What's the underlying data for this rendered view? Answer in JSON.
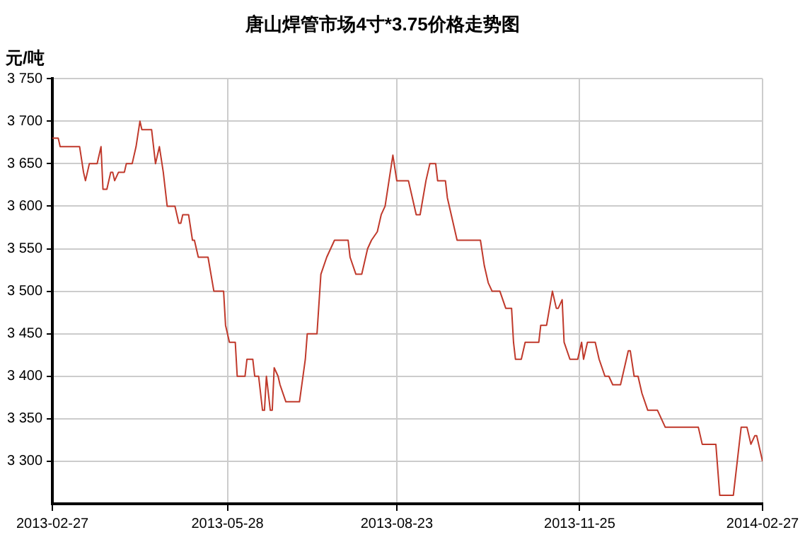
{
  "chart_data": {
    "type": "line",
    "title": "唐山焊管市场4寸*3.75价格走势图",
    "ylabel": "元/吨",
    "x": [
      "2013-02-27",
      "2013-03-02",
      "2013-03-03",
      "2013-03-13",
      "2013-03-15",
      "2013-03-16",
      "2013-03-18",
      "2013-03-22",
      "2013-03-24",
      "2013-03-25",
      "2013-03-27",
      "2013-03-29",
      "2013-03-30",
      "2013-03-31",
      "2013-04-02",
      "2013-04-05",
      "2013-04-06",
      "2013-04-09",
      "2013-04-11",
      "2013-04-13",
      "2013-04-14",
      "2013-04-19",
      "2013-04-21",
      "2013-04-23",
      "2013-04-25",
      "2013-04-27",
      "2013-05-01",
      "2013-05-03",
      "2013-05-04",
      "2013-05-05",
      "2013-05-08",
      "2013-05-10",
      "2013-05-11",
      "2013-05-13",
      "2013-05-18",
      "2013-05-21",
      "2013-05-26",
      "2013-05-27",
      "2013-05-29",
      "2013-06-01",
      "2013-06-02",
      "2013-06-06",
      "2013-06-07",
      "2013-06-10",
      "2013-06-11",
      "2013-06-13",
      "2013-06-15",
      "2013-06-16",
      "2013-06-17",
      "2013-06-19",
      "2013-06-20",
      "2013-06-21",
      "2013-06-23",
      "2013-06-24",
      "2013-06-27",
      "2013-07-04",
      "2013-07-07",
      "2013-07-08",
      "2013-07-13",
      "2013-07-15",
      "2013-07-18",
      "2013-07-20",
      "2013-07-22",
      "2013-07-29",
      "2013-07-30",
      "2013-08-02",
      "2013-08-05",
      "2013-08-08",
      "2013-08-10",
      "2013-08-13",
      "2013-08-15",
      "2013-08-17",
      "2013-08-19",
      "2013-08-21",
      "2013-08-23",
      "2013-08-29",
      "2013-08-31",
      "2013-09-02",
      "2013-09-04",
      "2013-09-07",
      "2013-09-09",
      "2013-09-12",
      "2013-09-13",
      "2013-09-17",
      "2013-09-18",
      "2013-09-20",
      "2013-09-23",
      "2013-10-05",
      "2013-10-07",
      "2013-10-09",
      "2013-10-11",
      "2013-10-15",
      "2013-10-18",
      "2013-10-21",
      "2013-10-22",
      "2013-10-23",
      "2013-10-26",
      "2013-10-28",
      "2013-11-04",
      "2013-11-05",
      "2013-11-08",
      "2013-11-11",
      "2013-11-13",
      "2013-11-14",
      "2013-11-16",
      "2013-11-17",
      "2013-11-20",
      "2013-11-24",
      "2013-11-26",
      "2013-11-27",
      "2013-11-29",
      "2013-12-03",
      "2013-12-05",
      "2013-12-08",
      "2013-12-10",
      "2013-12-12",
      "2013-12-16",
      "2013-12-20",
      "2013-12-21",
      "2013-12-23",
      "2013-12-25",
      "2013-12-27",
      "2013-12-30",
      "2014-01-04",
      "2014-01-08",
      "2014-01-25",
      "2014-01-27",
      "2014-02-03",
      "2014-02-05",
      "2014-02-12",
      "2014-02-16",
      "2014-02-19",
      "2014-02-21",
      "2014-02-23",
      "2014-02-24",
      "2014-02-27"
    ],
    "series": [
      {
        "color": "#c0392b",
        "values": [
          3680,
          3680,
          3670,
          3670,
          3640,
          3630,
          3650,
          3650,
          3670,
          3620,
          3620,
          3640,
          3640,
          3630,
          3640,
          3640,
          3650,
          3650,
          3670,
          3700,
          3690,
          3690,
          3650,
          3670,
          3640,
          3600,
          3600,
          3580,
          3580,
          3590,
          3590,
          3560,
          3560,
          3540,
          3540,
          3500,
          3500,
          3460,
          3440,
          3440,
          3400,
          3400,
          3420,
          3420,
          3400,
          3400,
          3360,
          3360,
          3400,
          3360,
          3360,
          3410,
          3400,
          3390,
          3370,
          3370,
          3420,
          3450,
          3450,
          3520,
          3540,
          3550,
          3560,
          3560,
          3540,
          3520,
          3520,
          3550,
          3560,
          3570,
          3590,
          3600,
          3630,
          3660,
          3630,
          3630,
          3610,
          3590,
          3590,
          3630,
          3650,
          3650,
          3630,
          3630,
          3610,
          3590,
          3560,
          3560,
          3530,
          3510,
          3500,
          3500,
          3480,
          3480,
          3440,
          3420,
          3420,
          3440,
          3440,
          3460,
          3460,
          3500,
          3480,
          3480,
          3490,
          3440,
          3420,
          3420,
          3440,
          3420,
          3440,
          3440,
          3420,
          3400,
          3400,
          3390,
          3390,
          3430,
          3430,
          3400,
          3400,
          3380,
          3360,
          3360,
          3340,
          3340,
          3320,
          3320,
          3260,
          3260,
          3340,
          3340,
          3320,
          3330,
          3330,
          3300
        ]
      }
    ],
    "xlim": [
      "2013-02-27",
      "2014-02-27"
    ],
    "xticks": [
      "2013-02-27",
      "2013-05-28",
      "2013-08-23",
      "2013-11-25",
      "2014-02-27"
    ],
    "ylim": [
      3250,
      3750
    ],
    "yticks": [
      {
        "value": 3300,
        "label": "3 300"
      },
      {
        "value": 3350,
        "label": "3 350"
      },
      {
        "value": 3400,
        "label": "3 400"
      },
      {
        "value": 3450,
        "label": "3 450"
      },
      {
        "value": 3500,
        "label": "3 500"
      },
      {
        "value": 3550,
        "label": "3 550"
      },
      {
        "value": 3600,
        "label": "3 600"
      },
      {
        "value": 3650,
        "label": "3 650"
      },
      {
        "value": 3700,
        "label": "3 700"
      },
      {
        "value": 3750,
        "label": "3 750"
      }
    ],
    "grid": true,
    "marker": "none",
    "line_style": "solid",
    "legend": false
  }
}
